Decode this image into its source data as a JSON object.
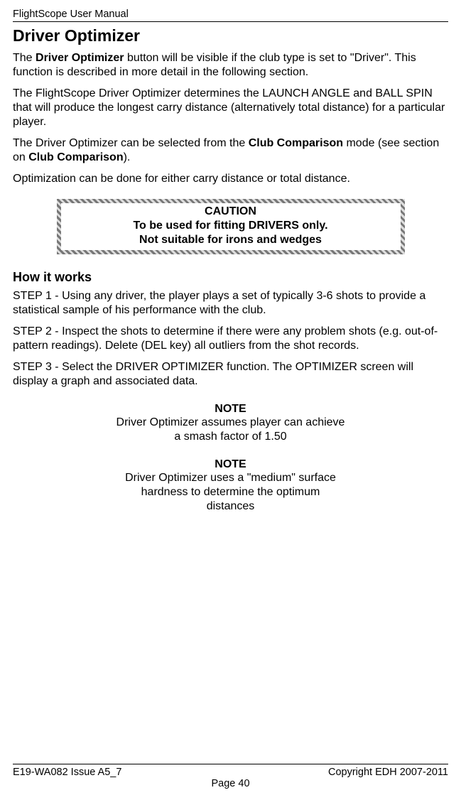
{
  "header": {
    "title": "FlightScope User Manual"
  },
  "section": {
    "title": "Driver Optimizer"
  },
  "paragraphs": {
    "p1_pre": "The ",
    "p1_b1": "Driver Optimizer",
    "p1_post": " button will be visible if the club type is set to \"Driver\". This function is described in more detail in the following section.",
    "p2": "The FlightScope Driver Optimizer determines the LAUNCH ANGLE and BALL SPIN that will produce the longest carry distance (alternatively total distance) for a particular player.",
    "p3_pre": "The Driver Optimizer can be selected from the ",
    "p3_b1": "Club Comparison",
    "p3_mid": " mode (see section on ",
    "p3_b2": "Club Comparison",
    "p3_post": ").",
    "p4": "Optimization can be done for either carry distance or total distance."
  },
  "caution": {
    "line1": "CAUTION",
    "line2": "To be used for fitting DRIVERS only.",
    "line3": "Not suitable for irons and wedges"
  },
  "how": {
    "title": "How it works",
    "step1": "STEP 1 - Using any driver, the player plays a set of typically 3-6 shots to provide a statistical sample of his performance with the club.",
    "step2": "STEP 2 - Inspect the shots to determine if there were any problem shots (e.g. out-of-pattern readings). Delete (DEL key) all outliers from the shot records.",
    "step3": "STEP 3 - Select the DRIVER OPTIMIZER function. The OPTIMIZER screen will display a graph and associated data."
  },
  "notes": {
    "head1": "NOTE",
    "body1a": "Driver Optimizer assumes player can achieve",
    "body1b": "a smash factor of 1.50",
    "head2": "NOTE",
    "body2a": "Driver Optimizer uses a \"medium\" surface",
    "body2b": "hardness to determine the optimum",
    "body2c": "distances"
  },
  "footer": {
    "left": "E19-WA082 Issue A5_7",
    "right": "Copyright EDH 2007-2011",
    "page": "Page 40"
  }
}
